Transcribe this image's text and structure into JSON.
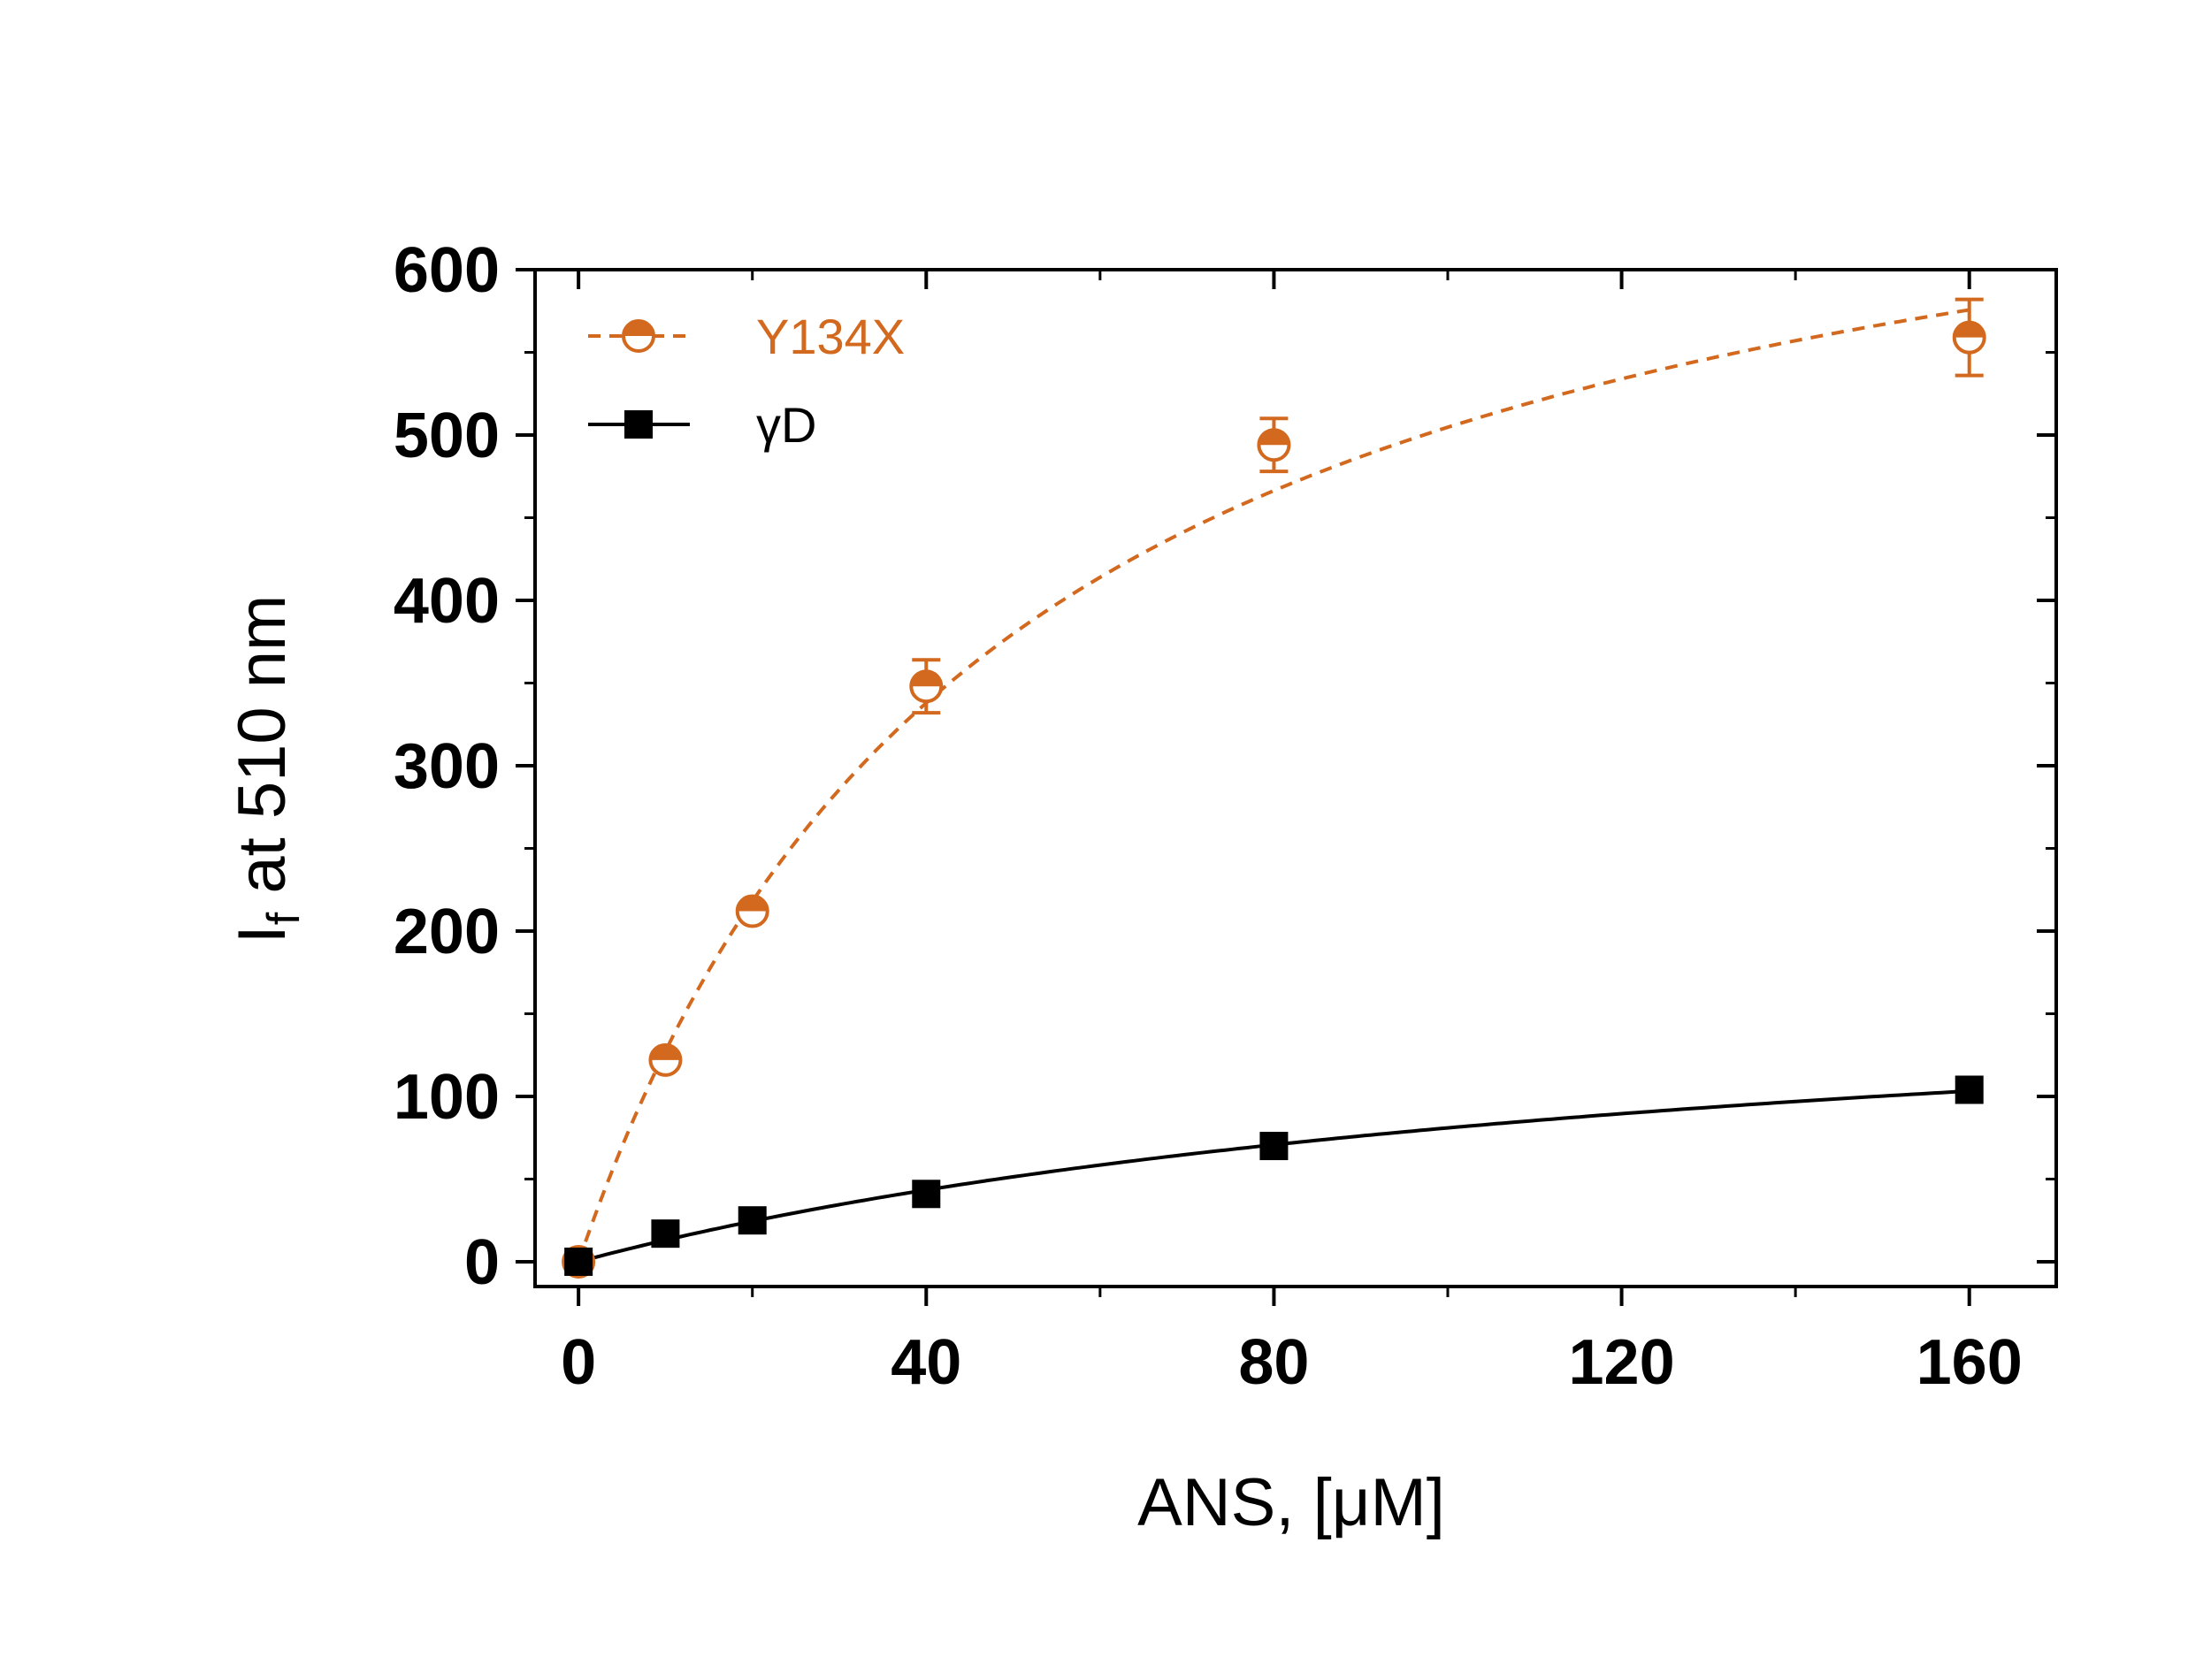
{
  "chart_data": {
    "type": "scatter",
    "xlabel": "ANS, [μM]",
    "ylabel_main": "I",
    "ylabel_sub": "f",
    "ylabel_rest": " at 510 nm",
    "xlim": [
      -5,
      170
    ],
    "ylim": [
      -15,
      600
    ],
    "xticks": [
      0,
      40,
      80,
      120,
      160
    ],
    "xtick_labels": [
      "0",
      "40",
      "80",
      "120",
      "160"
    ],
    "xminor": [
      20,
      60,
      100,
      140
    ],
    "yticks": [
      0,
      100,
      200,
      300,
      400,
      500,
      600
    ],
    "ytick_labels": [
      "0",
      "100",
      "200",
      "300",
      "400",
      "500",
      "600"
    ],
    "yminor": [
      50,
      150,
      250,
      350,
      450,
      550
    ],
    "grid": false,
    "legend_position": "top-left",
    "series": [
      {
        "name": "Y134X",
        "color": "#d2691e",
        "marker": "half-filled-circle",
        "line_style": "dashed",
        "x": [
          0,
          10,
          20,
          40,
          80,
          160
        ],
        "y": [
          0,
          122,
          212,
          348,
          494,
          559
        ],
        "error": [
          0,
          0,
          0,
          16,
          16,
          23
        ],
        "fit": {
          "model": "hyperbolic",
          "max": 752,
          "half": 49
        }
      },
      {
        "name": "γD",
        "color": "#000000",
        "marker": "filled-square",
        "line_style": "solid",
        "x": [
          0,
          10,
          20,
          40,
          80,
          160
        ],
        "y": [
          0,
          17,
          25,
          41,
          70,
          104
        ],
        "error": [
          0,
          0,
          0,
          0,
          0,
          0
        ],
        "fit": {
          "model": "hyperbolic",
          "max": 191,
          "half": 136
        }
      }
    ]
  }
}
